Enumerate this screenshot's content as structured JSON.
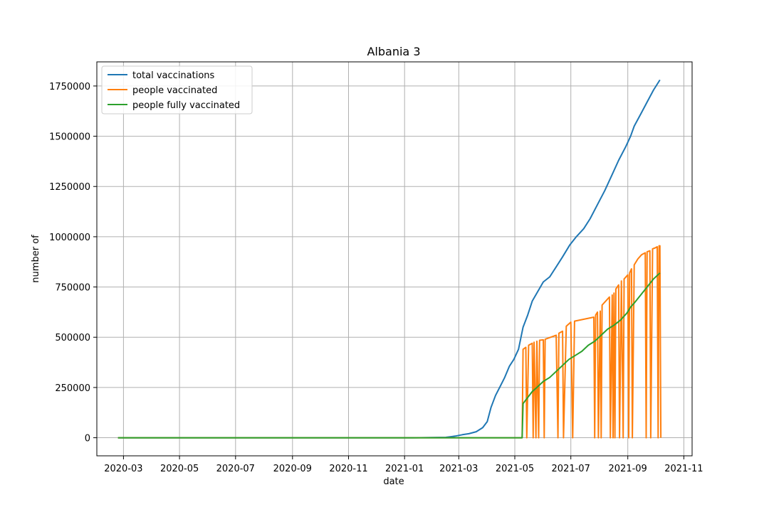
{
  "chart_data": {
    "type": "line",
    "title": "Albania 3",
    "xlabel": "date",
    "ylabel": "number of",
    "xlim": [
      "2020-02-01",
      "2021-11-10"
    ],
    "ylim": [
      -90000,
      1870000
    ],
    "x_ticks": [
      "2020-03",
      "2020-05",
      "2020-07",
      "2020-09",
      "2020-11",
      "2021-01",
      "2021-03",
      "2021-05",
      "2021-07",
      "2021-09",
      "2021-11"
    ],
    "y_ticks": [
      0,
      250000,
      500000,
      750000,
      1000000,
      1250000,
      1500000,
      1750000
    ],
    "grid": true,
    "legend_position": "top-left",
    "series": [
      {
        "name": "total vaccinations",
        "color": "#1f77b4",
        "points": [
          [
            "2020-02-24",
            0
          ],
          [
            "2021-01-10",
            0
          ],
          [
            "2021-02-15",
            2000
          ],
          [
            "2021-02-25",
            8000
          ],
          [
            "2021-03-05",
            15000
          ],
          [
            "2021-03-12",
            20000
          ],
          [
            "2021-03-20",
            30000
          ],
          [
            "2021-03-27",
            50000
          ],
          [
            "2021-04-01",
            80000
          ],
          [
            "2021-04-05",
            150000
          ],
          [
            "2021-04-10",
            210000
          ],
          [
            "2021-04-15",
            255000
          ],
          [
            "2021-04-20",
            300000
          ],
          [
            "2021-04-25",
            355000
          ],
          [
            "2021-04-30",
            390000
          ],
          [
            "2021-05-05",
            440000
          ],
          [
            "2021-05-10",
            550000
          ],
          [
            "2021-05-15",
            610000
          ],
          [
            "2021-05-20",
            680000
          ],
          [
            "2021-05-25",
            720000
          ],
          [
            "2021-06-01",
            775000
          ],
          [
            "2021-06-08",
            800000
          ],
          [
            "2021-06-15",
            850000
          ],
          [
            "2021-06-22",
            900000
          ],
          [
            "2021-06-30",
            960000
          ],
          [
            "2021-07-07",
            1000000
          ],
          [
            "2021-07-15",
            1040000
          ],
          [
            "2021-07-22",
            1090000
          ],
          [
            "2021-07-30",
            1160000
          ],
          [
            "2021-08-07",
            1230000
          ],
          [
            "2021-08-15",
            1310000
          ],
          [
            "2021-08-22",
            1380000
          ],
          [
            "2021-08-30",
            1450000
          ],
          [
            "2021-09-04",
            1500000
          ],
          [
            "2021-09-08",
            1550000
          ],
          [
            "2021-09-15",
            1610000
          ],
          [
            "2021-09-22",
            1670000
          ],
          [
            "2021-09-29",
            1730000
          ],
          [
            "2021-10-06",
            1780000
          ]
        ]
      },
      {
        "name": "people vaccinated",
        "color": "#ff7f0e",
        "points": [
          [
            "2020-02-24",
            0
          ],
          [
            "2021-05-09",
            0
          ],
          [
            "2021-05-10",
            440000
          ],
          [
            "2021-05-13",
            450000
          ],
          [
            "2021-05-14",
            0
          ],
          [
            "2021-05-16",
            460000
          ],
          [
            "2021-05-20",
            470000
          ],
          [
            "2021-05-21",
            0
          ],
          [
            "2021-05-22",
            475000
          ],
          [
            "2021-05-24",
            0
          ],
          [
            "2021-05-25",
            480000
          ],
          [
            "2021-05-27",
            0
          ],
          [
            "2021-05-28",
            485000
          ],
          [
            "2021-06-01",
            487000
          ],
          [
            "2021-06-02",
            0
          ],
          [
            "2021-06-03",
            490000
          ],
          [
            "2021-06-15",
            510000
          ],
          [
            "2021-06-17",
            0
          ],
          [
            "2021-06-18",
            520000
          ],
          [
            "2021-06-22",
            530000
          ],
          [
            "2021-06-23",
            0
          ],
          [
            "2021-06-26",
            555000
          ],
          [
            "2021-07-01",
            575000
          ],
          [
            "2021-07-03",
            0
          ],
          [
            "2021-07-05",
            580000
          ],
          [
            "2021-07-26",
            600000
          ],
          [
            "2021-07-27",
            0
          ],
          [
            "2021-07-28",
            610000
          ],
          [
            "2021-07-30",
            625000
          ],
          [
            "2021-07-31",
            0
          ],
          [
            "2021-08-02",
            630000
          ],
          [
            "2021-08-03",
            0
          ],
          [
            "2021-08-04",
            660000
          ],
          [
            "2021-08-12",
            700000
          ],
          [
            "2021-08-13",
            0
          ],
          [
            "2021-08-15",
            710000
          ],
          [
            "2021-08-16",
            0
          ],
          [
            "2021-08-17",
            720000
          ],
          [
            "2021-08-18",
            0
          ],
          [
            "2021-08-19",
            740000
          ],
          [
            "2021-08-22",
            760000
          ],
          [
            "2021-08-23",
            0
          ],
          [
            "2021-08-25",
            780000
          ],
          [
            "2021-08-27",
            0
          ],
          [
            "2021-08-28",
            790000
          ],
          [
            "2021-09-01",
            810000
          ],
          [
            "2021-09-02",
            0
          ],
          [
            "2021-09-03",
            820000
          ],
          [
            "2021-09-05",
            840000
          ],
          [
            "2021-09-06",
            0
          ],
          [
            "2021-09-08",
            860000
          ],
          [
            "2021-09-12",
            890000
          ],
          [
            "2021-09-16",
            910000
          ],
          [
            "2021-09-20",
            920000
          ],
          [
            "2021-09-21",
            0
          ],
          [
            "2021-09-22",
            925000
          ],
          [
            "2021-09-25",
            930000
          ],
          [
            "2021-09-26",
            0
          ],
          [
            "2021-09-28",
            940000
          ],
          [
            "2021-10-01",
            945000
          ],
          [
            "2021-10-03",
            950000
          ],
          [
            "2021-10-04",
            0
          ],
          [
            "2021-10-05",
            955000
          ],
          [
            "2021-10-06",
            955000
          ],
          [
            "2021-10-07",
            0
          ]
        ]
      },
      {
        "name": "people fully vaccinated",
        "color": "#2ca02c",
        "points": [
          [
            "2020-02-24",
            0
          ],
          [
            "2021-05-09",
            0
          ],
          [
            "2021-05-10",
            170000
          ],
          [
            "2021-05-15",
            200000
          ],
          [
            "2021-05-20",
            230000
          ],
          [
            "2021-05-25",
            250000
          ],
          [
            "2021-06-01",
            280000
          ],
          [
            "2021-06-08",
            300000
          ],
          [
            "2021-06-15",
            330000
          ],
          [
            "2021-06-22",
            360000
          ],
          [
            "2021-06-29",
            390000
          ],
          [
            "2021-07-06",
            410000
          ],
          [
            "2021-07-13",
            430000
          ],
          [
            "2021-07-20",
            460000
          ],
          [
            "2021-07-27",
            480000
          ],
          [
            "2021-08-03",
            510000
          ],
          [
            "2021-08-10",
            540000
          ],
          [
            "2021-08-17",
            560000
          ],
          [
            "2021-08-24",
            585000
          ],
          [
            "2021-08-31",
            620000
          ],
          [
            "2021-09-04",
            650000
          ],
          [
            "2021-09-08",
            670000
          ],
          [
            "2021-09-15",
            710000
          ],
          [
            "2021-09-22",
            750000
          ],
          [
            "2021-09-29",
            790000
          ],
          [
            "2021-10-06",
            820000
          ]
        ]
      }
    ]
  }
}
